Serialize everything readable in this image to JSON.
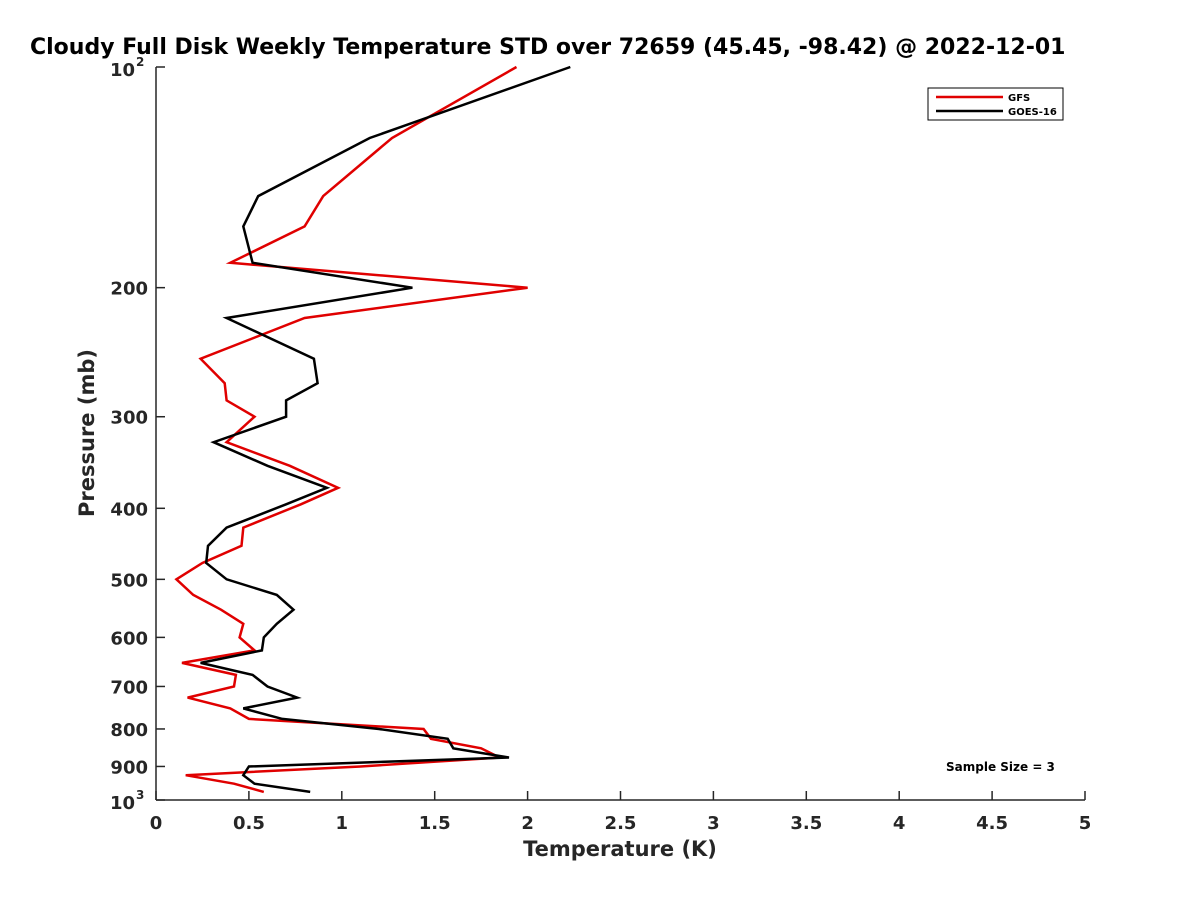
{
  "chart_data": {
    "type": "line",
    "title": "Cloudy Full Disk Weekly Temperature STD over 72659 (45.45, -98.42) @ 2022-12-01",
    "xlabel": "Temperature (K)",
    "ylabel": "Pressure (mb)",
    "xlim": [
      0,
      5
    ],
    "ylim": [
      100,
      1000
    ],
    "y_scale": "log",
    "y_reversed": true,
    "grid": false,
    "legend_position": "top-right",
    "x_ticks": [
      "0",
      "0.5",
      "1",
      "1.5",
      "2",
      "2.5",
      "3",
      "3.5",
      "4",
      "4.5",
      "5"
    ],
    "y_ticks": [
      {
        "value": 100,
        "base": "10",
        "exp": "2"
      },
      {
        "value": 200,
        "label": "200"
      },
      {
        "value": 300,
        "label": "300"
      },
      {
        "value": 400,
        "label": "400"
      },
      {
        "value": 500,
        "label": "500"
      },
      {
        "value": 600,
        "label": "600"
      },
      {
        "value": 700,
        "label": "700"
      },
      {
        "value": 800,
        "label": "800"
      },
      {
        "value": 900,
        "label": "900"
      },
      {
        "value": 1000,
        "base": "10",
        "exp": "3"
      }
    ],
    "annotation": "Sample Size = 3",
    "series": [
      {
        "name": "GFS",
        "color": "#e00000",
        "points": [
          [
            1.94,
            100
          ],
          [
            1.27,
            125
          ],
          [
            0.9,
            150
          ],
          [
            0.8,
            165
          ],
          [
            0.4,
            185
          ],
          [
            2.0,
            200
          ],
          [
            0.8,
            220
          ],
          [
            0.24,
            250
          ],
          [
            0.37,
            270
          ],
          [
            0.38,
            285
          ],
          [
            0.53,
            300
          ],
          [
            0.38,
            325
          ],
          [
            0.72,
            350
          ],
          [
            0.98,
            375
          ],
          [
            0.78,
            395
          ],
          [
            0.47,
            425
          ],
          [
            0.46,
            450
          ],
          [
            0.25,
            475
          ],
          [
            0.11,
            500
          ],
          [
            0.2,
            525
          ],
          [
            0.35,
            550
          ],
          [
            0.47,
            575
          ],
          [
            0.45,
            600
          ],
          [
            0.53,
            625
          ],
          [
            0.14,
            650
          ],
          [
            0.43,
            675
          ],
          [
            0.42,
            700
          ],
          [
            0.17,
            725
          ],
          [
            0.4,
            750
          ],
          [
            0.5,
            775
          ],
          [
            1.44,
            800
          ],
          [
            1.48,
            825
          ],
          [
            1.75,
            850
          ],
          [
            1.85,
            875
          ],
          [
            1.1,
            900
          ],
          [
            0.16,
            925
          ],
          [
            0.42,
            950
          ],
          [
            0.58,
            975
          ]
        ]
      },
      {
        "name": "GOES-16",
        "color": "#000000",
        "points": [
          [
            2.23,
            100
          ],
          [
            1.15,
            125
          ],
          [
            0.55,
            150
          ],
          [
            0.47,
            165
          ],
          [
            0.52,
            185
          ],
          [
            1.38,
            200
          ],
          [
            0.38,
            220
          ],
          [
            0.85,
            250
          ],
          [
            0.87,
            270
          ],
          [
            0.7,
            285
          ],
          [
            0.7,
            300
          ],
          [
            0.31,
            325
          ],
          [
            0.6,
            350
          ],
          [
            0.92,
            375
          ],
          [
            0.7,
            395
          ],
          [
            0.38,
            425
          ],
          [
            0.28,
            450
          ],
          [
            0.27,
            475
          ],
          [
            0.38,
            500
          ],
          [
            0.65,
            525
          ],
          [
            0.74,
            550
          ],
          [
            0.65,
            575
          ],
          [
            0.58,
            600
          ],
          [
            0.57,
            625
          ],
          [
            0.24,
            650
          ],
          [
            0.52,
            675
          ],
          [
            0.6,
            700
          ],
          [
            0.76,
            725
          ],
          [
            0.47,
            750
          ],
          [
            0.68,
            775
          ],
          [
            1.2,
            800
          ],
          [
            1.57,
            825
          ],
          [
            1.6,
            850
          ],
          [
            1.9,
            875
          ],
          [
            0.5,
            900
          ],
          [
            0.47,
            925
          ],
          [
            0.53,
            950
          ],
          [
            0.83,
            975
          ]
        ]
      }
    ]
  }
}
